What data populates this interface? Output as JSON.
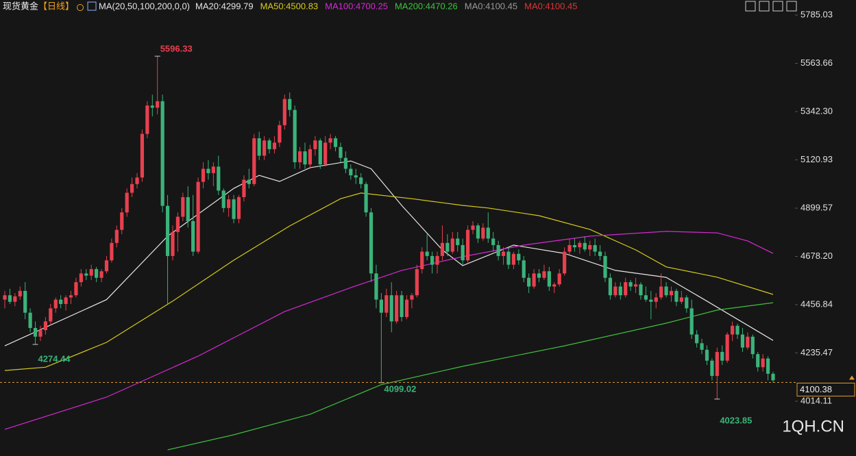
{
  "chart_data": {
    "type": "candlestick",
    "title": "现货黄金",
    "period": "【日线】",
    "indicator": "MA(20,50,100,200,0,0)",
    "legend": [
      {
        "text": "MA20:4299.79",
        "color": "#e6e6e6"
      },
      {
        "text": "MA50:4500.83",
        "color": "#d8cc1a"
      },
      {
        "text": "MA100:4700.25",
        "color": "#d62ad6"
      },
      {
        "text": "MA200:4470.26",
        "color": "#3fc23f"
      },
      {
        "text": "MA0:4100.45",
        "color": "#9a9a9a"
      },
      {
        "text": "MA0:4100.45",
        "color": "#e03535"
      }
    ],
    "up_color": "#e8404f",
    "down_color": "#3bb37a",
    "ylim": [
      3778.5,
      5854.1
    ],
    "yticks": [
      5785.03,
      5563.66,
      {
        "value": 5342.3,
        "label": "5342.30"
      },
      5120.93,
      4899.57,
      {
        "value": 4678.2,
        "label": "4678.20"
      },
      4456.84,
      4235.47,
      4014.11
    ],
    "last_price": 4100.38,
    "watermark": "1QH.CN",
    "ohlc": [
      [
        4480,
        4520,
        4440,
        4500
      ],
      [
        4500,
        4530,
        4460,
        4470
      ],
      [
        4470,
        4510,
        4450,
        4495
      ],
      [
        4495,
        4540,
        4480,
        4520
      ],
      [
        4520,
        4560,
        4390,
        4420
      ],
      [
        4420,
        4440,
        4330,
        4350
      ],
      [
        4350,
        4380,
        4274.44,
        4310
      ],
      [
        4310,
        4360,
        4290,
        4340
      ],
      [
        4340,
        4400,
        4320,
        4380
      ],
      [
        4380,
        4460,
        4360,
        4440
      ],
      [
        4440,
        4490,
        4420,
        4480
      ],
      [
        4480,
        4500,
        4440,
        4460
      ],
      [
        4460,
        4500,
        4430,
        4490
      ],
      [
        4490,
        4520,
        4460,
        4500
      ],
      [
        4500,
        4580,
        4490,
        4560
      ],
      [
        4560,
        4620,
        4540,
        4600
      ],
      [
        4600,
        4620,
        4570,
        4590
      ],
      [
        4590,
        4640,
        4570,
        4620
      ],
      [
        4620,
        4630,
        4560,
        4580
      ],
      [
        4580,
        4620,
        4560,
        4610
      ],
      [
        4610,
        4680,
        4600,
        4660
      ],
      [
        4660,
        4760,
        4650,
        4740
      ],
      [
        4740,
        4820,
        4720,
        4800
      ],
      [
        4800,
        4900,
        4780,
        4880
      ],
      [
        4880,
        4990,
        4860,
        4970
      ],
      [
        4970,
        5040,
        4950,
        5010
      ],
      [
        5010,
        5060,
        4990,
        5040
      ],
      [
        5040,
        5260,
        5020,
        5240
      ],
      [
        5240,
        5390,
        5220,
        5370
      ],
      [
        5370,
        5420,
        5320,
        5360
      ],
      [
        5360,
        5596.33,
        5330,
        5390
      ],
      [
        5390,
        5420,
        4880,
        4910
      ],
      [
        4910,
        4960,
        4460,
        4680
      ],
      [
        4680,
        4820,
        4660,
        4790
      ],
      [
        4790,
        4880,
        4700,
        4860
      ],
      [
        4860,
        4970,
        4840,
        4950
      ],
      [
        4950,
        5000,
        4810,
        4840
      ],
      [
        4840,
        4960,
        4680,
        4700
      ],
      [
        4700,
        5040,
        4690,
        5020
      ],
      [
        5020,
        5110,
        4990,
        5080
      ],
      [
        5080,
        5120,
        5030,
        5060
      ],
      [
        5060,
        5110,
        5000,
        5090
      ],
      [
        5090,
        5140,
        4960,
        4980
      ],
      [
        4980,
        4990,
        4880,
        4900
      ],
      [
        4900,
        4960,
        4860,
        4940
      ],
      [
        4940,
        4960,
        4830,
        4850
      ],
      [
        4850,
        4960,
        4830,
        4950
      ],
      [
        4950,
        5050,
        4930,
        5030
      ],
      [
        5030,
        5080,
        4990,
        5010
      ],
      [
        5010,
        5240,
        5000,
        5220
      ],
      [
        5220,
        5250,
        5120,
        5140
      ],
      [
        5140,
        5230,
        5120,
        5210
      ],
      [
        5210,
        5220,
        5150,
        5170
      ],
      [
        5170,
        5230,
        5150,
        5200
      ],
      [
        5200,
        5300,
        5180,
        5280
      ],
      [
        5280,
        5420,
        5260,
        5400
      ],
      [
        5400,
        5430,
        5320,
        5350
      ],
      [
        5350,
        5370,
        5080,
        5110
      ],
      [
        5110,
        5180,
        5080,
        5160
      ],
      [
        5160,
        5200,
        5080,
        5100
      ],
      [
        5100,
        5190,
        5080,
        5170
      ],
      [
        5170,
        5230,
        5140,
        5210
      ],
      [
        5210,
        5220,
        5080,
        5100
      ],
      [
        5100,
        5230,
        5090,
        5200
      ],
      [
        5200,
        5240,
        5170,
        5220
      ],
      [
        5220,
        5230,
        5160,
        5180
      ],
      [
        5180,
        5200,
        5110,
        5130
      ],
      [
        5130,
        5160,
        5060,
        5080
      ],
      [
        5080,
        5100,
        5030,
        5050
      ],
      [
        5050,
        5080,
        5010,
        5040
      ],
      [
        5040,
        5060,
        4990,
        5010
      ],
      [
        5010,
        5020,
        4860,
        4880
      ],
      [
        4880,
        4900,
        4560,
        4600
      ],
      [
        4600,
        4640,
        4440,
        4480
      ],
      [
        4480,
        4510,
        4099.02,
        4420
      ],
      [
        4420,
        4530,
        4400,
        4500
      ],
      [
        4500,
        4560,
        4330,
        4380
      ],
      [
        4380,
        4520,
        4370,
        4500
      ],
      [
        4500,
        4520,
        4380,
        4400
      ],
      [
        4400,
        4500,
        4390,
        4480
      ],
      [
        4480,
        4510,
        4440,
        4500
      ],
      [
        4500,
        4640,
        4490,
        4620
      ],
      [
        4620,
        4720,
        4600,
        4700
      ],
      [
        4700,
        4780,
        4660,
        4680
      ],
      [
        4680,
        4700,
        4600,
        4640
      ],
      [
        4640,
        4700,
        4600,
        4680
      ],
      [
        4680,
        4820,
        4660,
        4740
      ],
      [
        4740,
        4780,
        4680,
        4700
      ],
      [
        4700,
        4790,
        4690,
        4760
      ],
      [
        4760,
        4790,
        4700,
        4730
      ],
      [
        4730,
        4760,
        4640,
        4660
      ],
      [
        4660,
        4820,
        4650,
        4800
      ],
      [
        4800,
        4840,
        4780,
        4820
      ],
      [
        4820,
        4830,
        4740,
        4760
      ],
      [
        4760,
        4830,
        4750,
        4810
      ],
      [
        4810,
        4880,
        4740,
        4760
      ],
      [
        4760,
        4790,
        4700,
        4730
      ],
      [
        4730,
        4750,
        4660,
        4680
      ],
      [
        4680,
        4720,
        4640,
        4700
      ],
      [
        4700,
        4720,
        4620,
        4640
      ],
      [
        4640,
        4700,
        4620,
        4690
      ],
      [
        4690,
        4710,
        4640,
        4660
      ],
      [
        4660,
        4680,
        4560,
        4580
      ],
      [
        4580,
        4600,
        4510,
        4540
      ],
      [
        4540,
        4620,
        4530,
        4600
      ],
      [
        4600,
        4620,
        4560,
        4580
      ],
      [
        4580,
        4640,
        4570,
        4610
      ],
      [
        4610,
        4630,
        4520,
        4540
      ],
      [
        4540,
        4560,
        4510,
        4550
      ],
      [
        4550,
        4620,
        4540,
        4600
      ],
      [
        4600,
        4720,
        4590,
        4700
      ],
      [
        4700,
        4760,
        4680,
        4730
      ],
      [
        4730,
        4760,
        4700,
        4720
      ],
      [
        4720,
        4750,
        4690,
        4740
      ],
      [
        4740,
        4770,
        4700,
        4710
      ],
      [
        4710,
        4750,
        4680,
        4730
      ],
      [
        4730,
        4760,
        4680,
        4700
      ],
      [
        4700,
        4730,
        4660,
        4680
      ],
      [
        4680,
        4700,
        4560,
        4580
      ],
      [
        4580,
        4600,
        4480,
        4500
      ],
      [
        4500,
        4560,
        4490,
        4540
      ],
      [
        4540,
        4560,
        4480,
        4500
      ],
      [
        4500,
        4580,
        4490,
        4560
      ],
      [
        4560,
        4570,
        4520,
        4540
      ],
      [
        4540,
        4580,
        4510,
        4550
      ],
      [
        4550,
        4560,
        4480,
        4500
      ],
      [
        4500,
        4540,
        4470,
        4480
      ],
      [
        4480,
        4520,
        4390,
        4470
      ],
      [
        4470,
        4510,
        4440,
        4490
      ],
      [
        4490,
        4600,
        4480,
        4540
      ],
      [
        4540,
        4560,
        4490,
        4500
      ],
      [
        4500,
        4540,
        4470,
        4520
      ],
      [
        4520,
        4530,
        4450,
        4470
      ],
      [
        4470,
        4520,
        4460,
        4490
      ],
      [
        4490,
        4500,
        4420,
        4440
      ],
      [
        4440,
        4480,
        4300,
        4320
      ],
      [
        4320,
        4340,
        4260,
        4280
      ],
      [
        4280,
        4300,
        4230,
        4250
      ],
      [
        4250,
        4270,
        4180,
        4200
      ],
      [
        4200,
        4210,
        4110,
        4130
      ],
      [
        4130,
        4260,
        4023.85,
        4240
      ],
      [
        4240,
        4270,
        4180,
        4200
      ],
      [
        4200,
        4330,
        4190,
        4320
      ],
      [
        4320,
        4380,
        4290,
        4360
      ],
      [
        4360,
        4370,
        4300,
        4320
      ],
      [
        4320,
        4350,
        4240,
        4260
      ],
      [
        4260,
        4330,
        4250,
        4310
      ],
      [
        4310,
        4320,
        4210,
        4230
      ],
      [
        4230,
        4240,
        4150,
        4170
      ],
      [
        4170,
        4230,
        4150,
        4210
      ],
      [
        4210,
        4220,
        4110,
        4140
      ],
      [
        4140,
        4150,
        4100,
        4110
      ]
    ],
    "ma_lines": [
      {
        "color": "#e6e6e6",
        "x": [
          0,
          20,
          32,
          45,
          50,
          54,
          60,
          68,
          72,
          78,
          86,
          90,
          100,
          110,
          120,
          130,
          138,
          151
        ],
        "values": [
          4268,
          4480,
          4771,
          4990,
          5050,
          5022,
          5085,
          5116,
          5080,
          4912,
          4708,
          4636,
          4730,
          4692,
          4614,
          4582,
          4473,
          4293
        ]
      },
      {
        "color": "#d8cc1a",
        "x": [
          0,
          8,
          20,
          33,
          45,
          56,
          66,
          70,
          80,
          90,
          95,
          105,
          115,
          124,
          130,
          140,
          151
        ],
        "values": [
          4155,
          4170,
          4284,
          4473,
          4661,
          4818,
          4943,
          4969,
          4943,
          4912,
          4900,
          4865,
          4802,
          4708,
          4630,
          4583,
          4504
        ]
      },
      {
        "color": "#d62ad6",
        "x": [
          0,
          20,
          38,
          55,
          68,
          78,
          90,
          102,
          115,
          130,
          140,
          146,
          151
        ],
        "values": [
          3885,
          4033,
          4221,
          4425,
          4535,
          4614,
          4677,
          4730,
          4771,
          4793,
          4786,
          4749,
          4692
        ]
      },
      {
        "color": "#3fc23f",
        "x": [
          32,
          45,
          60,
          74,
          90,
          110,
          130,
          140,
          151
        ],
        "values": [
          3791,
          3860,
          3954,
          4090,
          4174,
          4268,
          4372,
          4432,
          4466
        ]
      }
    ]
  }
}
